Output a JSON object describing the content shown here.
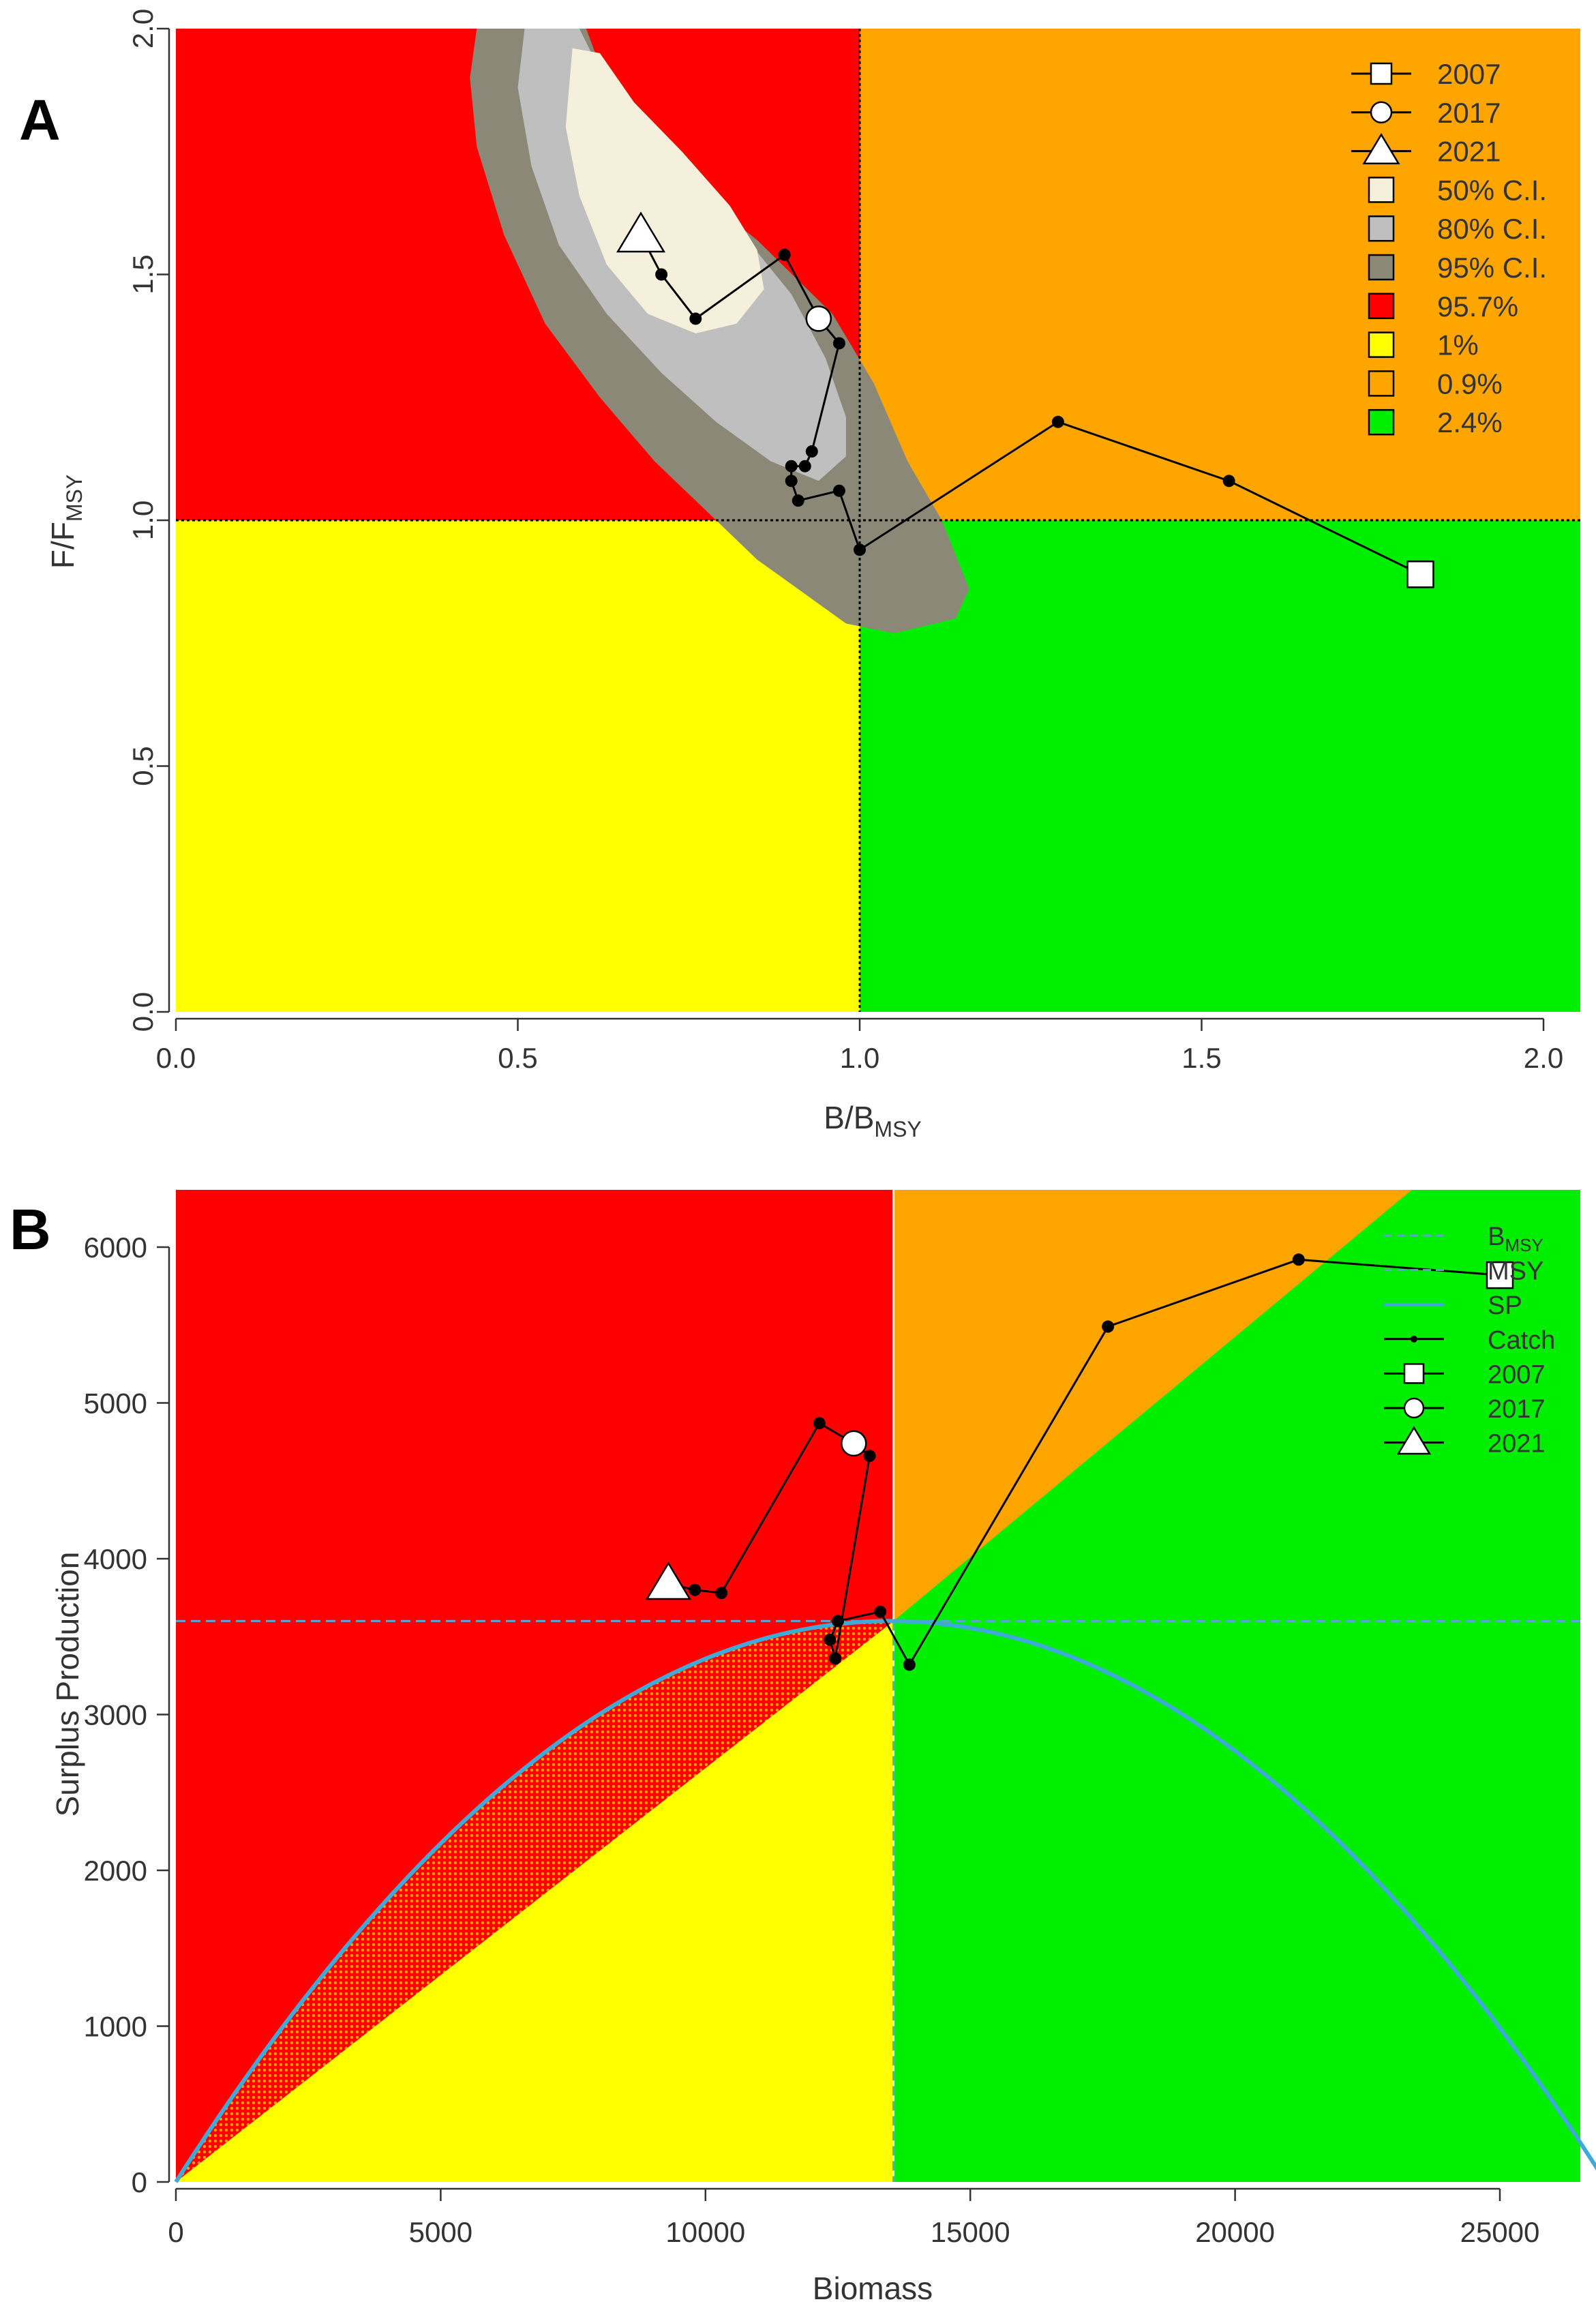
{
  "chart_data": [
    {
      "panel_label": "A",
      "type": "scatter",
      "subtype": "kobe_plot",
      "xlabel": {
        "main": "B/B",
        "sub": "MSY"
      },
      "ylabel": {
        "main": "F/F",
        "sub": "MSY"
      },
      "xlim": [
        0,
        2.05
      ],
      "ylim": [
        0,
        2.0
      ],
      "x_ticks": [
        "0.0",
        "0.5",
        "1.0",
        "1.5",
        "2.0"
      ],
      "y_ticks": [
        "0.0",
        "0.5",
        "1.0",
        "1.5",
        "2.0"
      ],
      "reference_lines": {
        "x": 1.0,
        "y": 1.0
      },
      "quadrants": [
        {
          "name": "overfished-overfishing",
          "color": "#ff0000"
        },
        {
          "name": "not-overfished-overfishing",
          "color": "#ffa500"
        },
        {
          "name": "overfished-no-overfishing",
          "color": "#ffff00"
        },
        {
          "name": "healthy",
          "color": "#00ee00"
        }
      ],
      "confidence_regions": {
        "orientation_deg": 58,
        "center": [
          0.76,
          1.48
        ],
        "ci95": {
          "color": "#8b8878",
          "points": [
            [
              0.44,
              2.0
            ],
            [
              0.6,
              2.0
            ],
            [
              0.64,
              1.85
            ],
            [
              0.73,
              1.7
            ],
            [
              0.85,
              1.57
            ],
            [
              0.96,
              1.42
            ],
            [
              1.02,
              1.28
            ],
            [
              1.07,
              1.12
            ],
            [
              1.12,
              1.0
            ],
            [
              1.16,
              0.86
            ],
            [
              1.14,
              0.8
            ],
            [
              1.05,
              0.77
            ],
            [
              0.98,
              0.79
            ],
            [
              0.92,
              0.85
            ],
            [
              0.85,
              0.92
            ],
            [
              0.79,
              1.0
            ],
            [
              0.7,
              1.12
            ],
            [
              0.62,
              1.25
            ],
            [
              0.54,
              1.4
            ],
            [
              0.48,
              1.58
            ],
            [
              0.44,
              1.76
            ],
            [
              0.43,
              1.9
            ]
          ]
        },
        "ci80": {
          "color": "#bfbfbf",
          "points": [
            [
              0.51,
              2.0
            ],
            [
              0.59,
              2.0
            ],
            [
              0.64,
              1.86
            ],
            [
              0.73,
              1.72
            ],
            [
              0.83,
              1.58
            ],
            [
              0.9,
              1.46
            ],
            [
              0.95,
              1.33
            ],
            [
              0.98,
              1.21
            ],
            [
              0.98,
              1.13
            ],
            [
              0.94,
              1.08
            ],
            [
              0.87,
              1.12
            ],
            [
              0.79,
              1.2
            ],
            [
              0.71,
              1.3
            ],
            [
              0.63,
              1.42
            ],
            [
              0.56,
              1.56
            ],
            [
              0.52,
              1.72
            ],
            [
              0.5,
              1.88
            ]
          ]
        },
        "ci50": {
          "color": "#f5f0dc",
          "points": [
            [
              0.58,
              1.96
            ],
            [
              0.62,
              1.95
            ],
            [
              0.67,
              1.85
            ],
            [
              0.74,
              1.75
            ],
            [
              0.81,
              1.64
            ],
            [
              0.85,
              1.55
            ],
            [
              0.86,
              1.47
            ],
            [
              0.82,
              1.4
            ],
            [
              0.76,
              1.38
            ],
            [
              0.69,
              1.42
            ],
            [
              0.63,
              1.52
            ],
            [
              0.59,
              1.66
            ],
            [
              0.57,
              1.8
            ]
          ]
        }
      },
      "trajectory": {
        "points": [
          [
            1.82,
            0.89
          ],
          [
            1.54,
            1.08
          ],
          [
            1.29,
            1.2
          ],
          [
            1.0,
            0.94
          ],
          [
            0.97,
            1.06
          ],
          [
            0.91,
            1.04
          ],
          [
            0.9,
            1.08
          ],
          [
            0.9,
            1.11
          ],
          [
            0.92,
            1.11
          ],
          [
            0.93,
            1.14
          ],
          [
            0.97,
            1.36
          ],
          [
            0.94,
            1.41
          ],
          [
            0.89,
            1.54
          ],
          [
            0.76,
            1.41
          ],
          [
            0.71,
            1.5
          ],
          [
            0.68,
            1.58
          ]
        ]
      },
      "markers": [
        {
          "label": "2007",
          "shape": "square",
          "x": 1.82,
          "y": 0.89
        },
        {
          "label": "2017",
          "shape": "circle",
          "x": 0.94,
          "y": 1.41
        },
        {
          "label": "2021",
          "shape": "triangle",
          "x": 0.68,
          "y": 1.58
        }
      ],
      "legend": {
        "position": "top-right",
        "items": [
          {
            "kind": "line-square",
            "label": "2007"
          },
          {
            "kind": "line-circle",
            "label": "2017"
          },
          {
            "kind": "line-triangle",
            "label": "2021"
          },
          {
            "kind": "box",
            "color": "#f5f0dc",
            "label": "50% C.I."
          },
          {
            "kind": "box",
            "color": "#bfbfbf",
            "label": "80% C.I."
          },
          {
            "kind": "box",
            "color": "#8b8878",
            "label": "95% C.I."
          },
          {
            "kind": "box",
            "color": "#ff0000",
            "label": "95.7%"
          },
          {
            "kind": "box",
            "color": "#ffff00",
            "label": "1%"
          },
          {
            "kind": "box",
            "color": "#ffa500",
            "label": "0.9%"
          },
          {
            "kind": "box",
            "color": "#00ee00",
            "label": "2.4%"
          }
        ]
      }
    },
    {
      "panel_label": "B",
      "type": "line",
      "subtype": "surplus_production_kobe",
      "xlabel": "Biomass",
      "ylabel": "Surplus Production",
      "xlim": [
        0,
        27000
      ],
      "ylim": [
        0,
        6200
      ],
      "x_ticks": [
        "0",
        "5000",
        "10000",
        "15000",
        "20000",
        "25000"
      ],
      "y_ticks": [
        "0",
        "1000",
        "2000",
        "3000",
        "4000",
        "5000",
        "6000"
      ],
      "bmsy": 13550,
      "msy": 3600,
      "sp_curve": {
        "type": "parabola",
        "K": 27000,
        "peak": 3600,
        "color": "#3fa9d8"
      },
      "colors": {
        "red": "#ff0000",
        "orange": "#ffa500",
        "yellow": "#ffff00",
        "green": "#00ee00",
        "reference": "#5ba3d8",
        "hatch": "#f0a000"
      },
      "catch": {
        "points": [
          [
            25000,
            5820
          ],
          [
            21200,
            5920
          ],
          [
            17600,
            5490
          ],
          [
            13850,
            3320
          ],
          [
            13300,
            3660
          ],
          [
            12500,
            3600
          ],
          [
            12350,
            3480
          ],
          [
            12450,
            3360
          ],
          [
            13100,
            4660
          ],
          [
            12800,
            4740
          ],
          [
            12150,
            4870
          ],
          [
            10300,
            3780
          ],
          [
            9800,
            3800
          ],
          [
            9300,
            3840
          ]
        ]
      },
      "markers": [
        {
          "label": "2007",
          "shape": "square",
          "x": 25000,
          "y": 5820
        },
        {
          "label": "2017",
          "shape": "circle",
          "x": 12800,
          "y": 4740
        },
        {
          "label": "2021",
          "shape": "triangle",
          "x": 9300,
          "y": 3840
        }
      ],
      "legend": {
        "position": "top-right",
        "items": [
          {
            "kind": "dashed",
            "main": "B",
            "sub": "MSY"
          },
          {
            "kind": "dashed",
            "main": "MSY",
            "sub": ""
          },
          {
            "kind": "solid",
            "main": "SP",
            "sub": ""
          },
          {
            "kind": "catch",
            "main": "Catch",
            "sub": ""
          },
          {
            "kind": "line-square",
            "main": "2007",
            "sub": ""
          },
          {
            "kind": "line-circle",
            "main": "2017",
            "sub": ""
          },
          {
            "kind": "line-triangle",
            "main": "2021",
            "sub": ""
          }
        ]
      }
    }
  ]
}
